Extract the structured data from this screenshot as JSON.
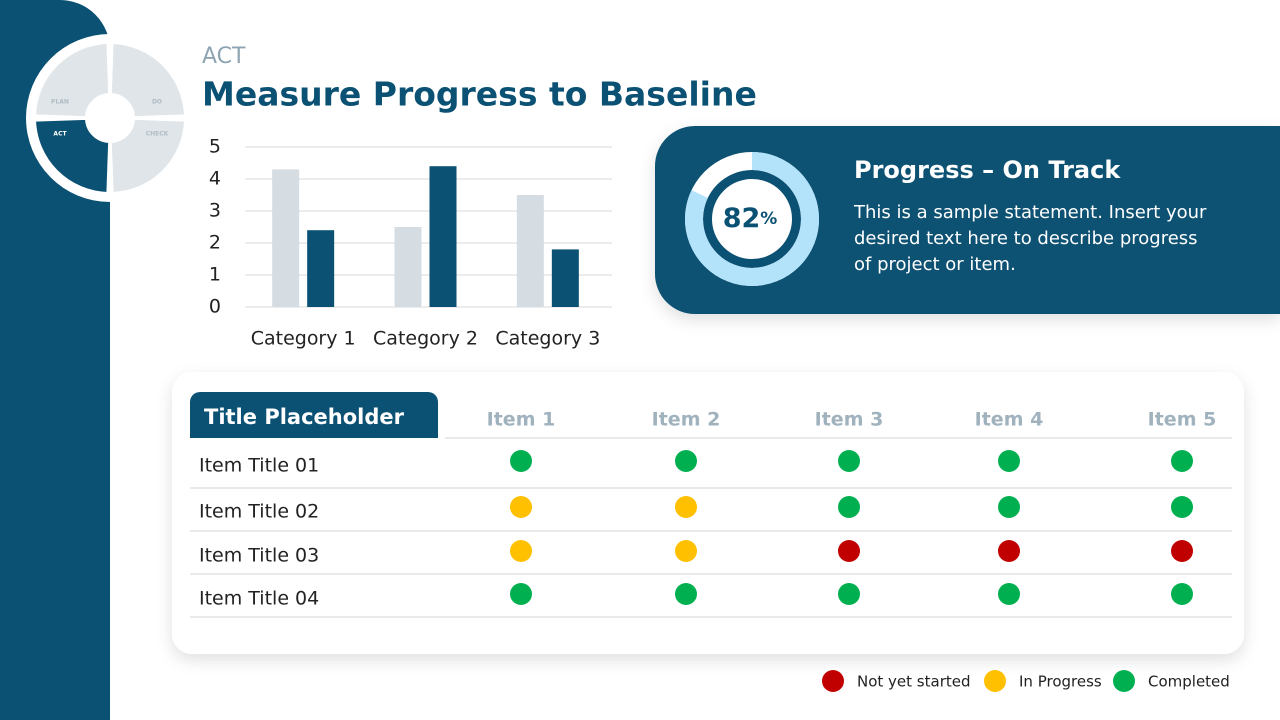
{
  "header": {
    "section": "ACT",
    "title": "Measure Progress to Baseline"
  },
  "cycle": {
    "labels": [
      "PLAN",
      "DO",
      "CHECK",
      "ACT"
    ]
  },
  "chart_data": {
    "type": "bar",
    "categories": [
      "Category 1",
      "Category 2",
      "Category 3"
    ],
    "series": [
      {
        "color": "#d5dde3",
        "values": [
          4.3,
          2.5,
          3.5
        ]
      },
      {
        "color": "#0b5173",
        "values": [
          2.4,
          4.4,
          1.8
        ]
      }
    ],
    "ylim": [
      0,
      5
    ],
    "yticks": [
      0,
      1,
      2,
      3,
      4,
      5
    ],
    "grid": true
  },
  "progress": {
    "value": 82,
    "label": "82",
    "unit": "%",
    "title": "Progress – On Track",
    "text": [
      "This is a sample statement. Insert your",
      "desired text here to describe progress",
      "of project or item."
    ]
  },
  "table": {
    "title": "Title Placeholder",
    "columns": [
      "Item 1",
      "Item 2",
      "Item 3",
      "Item 4",
      "Item 5"
    ],
    "rows": [
      {
        "label": "Item Title 01",
        "status": [
          2,
          2,
          2,
          2,
          2
        ]
      },
      {
        "label": "Item Title 02",
        "status": [
          1,
          1,
          2,
          2,
          2
        ]
      },
      {
        "label": "Item Title 03",
        "status": [
          1,
          1,
          0,
          0,
          0
        ]
      },
      {
        "label": "Item Title 04",
        "status": [
          2,
          2,
          2,
          2,
          2
        ]
      }
    ]
  },
  "legend": [
    {
      "label": "Not yet started",
      "color": "#c00000"
    },
    {
      "label": "In Progress",
      "color": "#ffc000"
    },
    {
      "label": "Completed",
      "color": "#00b050"
    }
  ]
}
